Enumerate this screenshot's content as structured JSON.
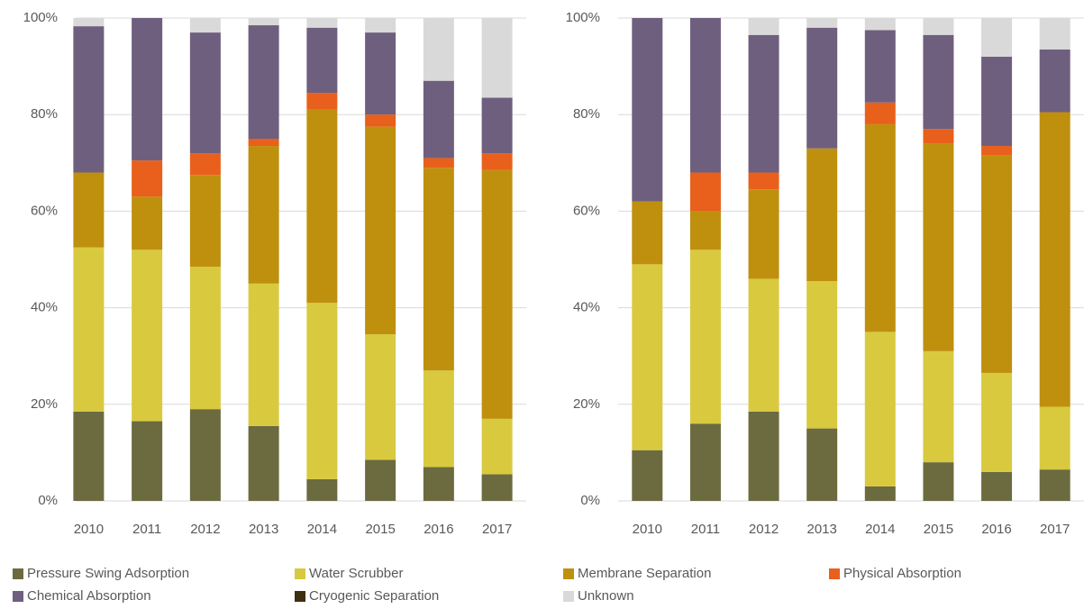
{
  "chart_data": [
    {
      "type": "stacked_bar",
      "categories": [
        "2010",
        "2011",
        "2012",
        "2013",
        "2014",
        "2015",
        "2016",
        "2017"
      ],
      "ylim": [
        0,
        100
      ],
      "yticks": [
        {
          "value": 0,
          "label": "0%"
        },
        {
          "value": 20,
          "label": "20%"
        },
        {
          "value": 40,
          "label": "40%"
        },
        {
          "value": 60,
          "label": "60%"
        },
        {
          "value": 80,
          "label": "80%"
        },
        {
          "value": 100,
          "label": "100%"
        }
      ],
      "grid": true,
      "series": [
        {
          "name": "Pressure Swing Adsorption",
          "color": "#6b6b3f",
          "values": [
            18.5,
            16.5,
            19,
            15.5,
            4.5,
            8.5,
            7,
            5.5
          ]
        },
        {
          "name": "Water Scrubber",
          "color": "#d9c93f",
          "values": [
            34,
            35.5,
            29.5,
            29.5,
            36.5,
            26,
            20,
            11.5
          ]
        },
        {
          "name": "Membrane Separation",
          "color": "#bf900e",
          "values": [
            15.5,
            11,
            19,
            28.5,
            40,
            43,
            42,
            51.5
          ]
        },
        {
          "name": "Physical Absorption",
          "color": "#e8601c",
          "values": [
            0,
            7.5,
            4.5,
            1.5,
            3.5,
            2.5,
            2,
            3.5
          ]
        },
        {
          "name": "Chemical Absorption",
          "color": "#6f5f7e",
          "values": [
            30.3,
            29.5,
            25,
            23.5,
            13.5,
            17,
            16,
            11.5
          ]
        },
        {
          "name": "Cryogenic Separation",
          "color": "#3d3010",
          "values": [
            0,
            0,
            0,
            0,
            0,
            0,
            0,
            0
          ]
        },
        {
          "name": "Unknown",
          "color": "#d9d9d9",
          "values": [
            1.7,
            0,
            3,
            1.5,
            2,
            3,
            13,
            16.5
          ]
        }
      ]
    },
    {
      "type": "stacked_bar",
      "categories": [
        "2010",
        "2011",
        "2012",
        "2013",
        "2014",
        "2015",
        "2016",
        "2017"
      ],
      "ylim": [
        0,
        100
      ],
      "yticks": [
        {
          "value": 0,
          "label": "0%"
        },
        {
          "value": 20,
          "label": "20%"
        },
        {
          "value": 40,
          "label": "40%"
        },
        {
          "value": 60,
          "label": "60%"
        },
        {
          "value": 80,
          "label": "80%"
        },
        {
          "value": 100,
          "label": "100%"
        }
      ],
      "grid": true,
      "series": [
        {
          "name": "Pressure Swing Adsorption",
          "color": "#6b6b3f",
          "values": [
            10.5,
            16,
            18.5,
            15,
            3,
            8,
            6,
            6.5
          ]
        },
        {
          "name": "Water Scrubber",
          "color": "#d9c93f",
          "values": [
            38.5,
            36,
            27.5,
            30.5,
            32,
            23,
            20.5,
            13
          ]
        },
        {
          "name": "Membrane Separation",
          "color": "#bf900e",
          "values": [
            13,
            8,
            18.5,
            27.5,
            43,
            43,
            45,
            61
          ]
        },
        {
          "name": "Physical Absorption",
          "color": "#e8601c",
          "values": [
            0,
            8,
            3.5,
            0,
            4.5,
            3,
            2,
            0
          ]
        },
        {
          "name": "Chemical Absorption",
          "color": "#6f5f7e",
          "values": [
            38,
            32,
            28.5,
            25,
            15,
            19.5,
            18.5,
            13
          ]
        },
        {
          "name": "Cryogenic Separation",
          "color": "#3d3010",
          "values": [
            0,
            0,
            0,
            0,
            0,
            0,
            0,
            0
          ]
        },
        {
          "name": "Unknown",
          "color": "#d9d9d9",
          "values": [
            0,
            0,
            3.5,
            2,
            2.5,
            3.5,
            8,
            6.5
          ]
        }
      ]
    }
  ]
}
